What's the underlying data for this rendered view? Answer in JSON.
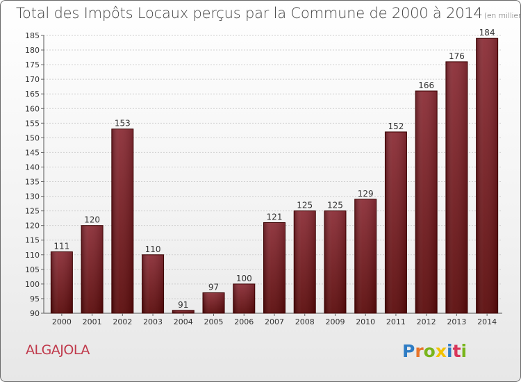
{
  "header": {
    "title": "Total des Impôts Locaux perçus par la Commune de 2000 à 2014",
    "subtitle": "(en milliers d'€)"
  },
  "footer": {
    "commune": "ALGAJOLA",
    "logo_text": "Proxiti"
  },
  "colors": {
    "bar_top": "#8b2d36",
    "bar_bottom": "#5a0a0a",
    "commune_text": "#c0394b",
    "logo_letters": [
      "#2e7cc4",
      "#e8742a",
      "#79b51c",
      "#f2c200",
      "#2e7cc4",
      "#d8365a",
      "#79b51c"
    ]
  },
  "chart_data": {
    "type": "bar",
    "title": "Total des Impôts Locaux perçus par la Commune de 2000 à 2014",
    "subtitle": "(en milliers d'€)",
    "categories": [
      "2000",
      "2001",
      "2002",
      "2003",
      "2004",
      "2005",
      "2006",
      "2007",
      "2008",
      "2009",
      "2010",
      "2011",
      "2012",
      "2013",
      "2014"
    ],
    "values": [
      111,
      120,
      153,
      110,
      91,
      97,
      100,
      121,
      125,
      125,
      129,
      152,
      166,
      176,
      184
    ],
    "ylim": [
      90,
      185
    ],
    "yticks": [
      90,
      95,
      100,
      105,
      110,
      115,
      120,
      125,
      130,
      135,
      140,
      145,
      150,
      155,
      160,
      165,
      170,
      175,
      180,
      185
    ],
    "grid": true,
    "xlabel": "",
    "ylabel": ""
  }
}
